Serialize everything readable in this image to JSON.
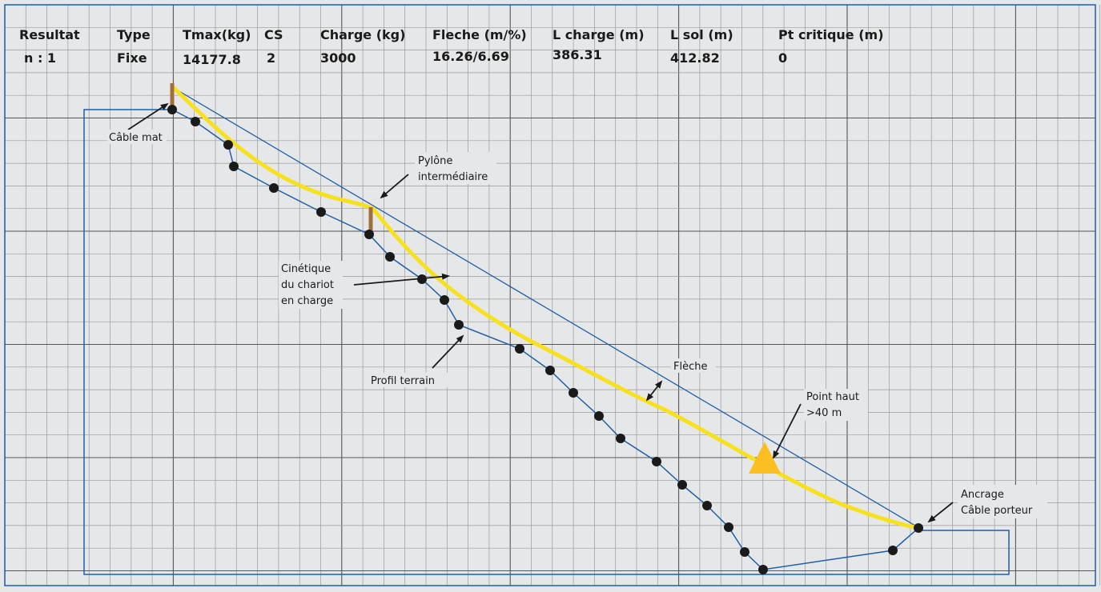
{
  "header": {
    "columns": [
      {
        "label": "Resultat",
        "value": "n : 1"
      },
      {
        "label": "Type",
        "value": "Fixe"
      },
      {
        "label": "Tmax(kg)",
        "value": "14177.8"
      },
      {
        "label": "CS",
        "value": "2"
      },
      {
        "label": "Charge (kg)",
        "value": "3000"
      },
      {
        "label": "Fleche (m/%)",
        "value": "16.26/6.69"
      },
      {
        "label": "L charge (m)",
        "value": "386.31"
      },
      {
        "label": "L sol (m)",
        "value": "412.82"
      },
      {
        "label": "Pt critique (m)",
        "value": "0"
      }
    ]
  },
  "annotations": {
    "cable_mat": "Câble mat",
    "pylone_line1": "Pylône",
    "pylone_line2": "intermédiaire",
    "cinetique_line1": "Cinétique",
    "cinetique_line2": "du chariot",
    "cinetique_line3": "en charge",
    "profil_terrain": "Profil terrain",
    "fleche": "Flèche",
    "point_haut_line1": "Point haut",
    "point_haut_line2": ">40 m",
    "ancrage_line1": "Ancrage",
    "ancrage_line2": "Câble porteur"
  },
  "colors": {
    "background": "#e6e7e8",
    "grid_minor": "#9a9a9a",
    "grid_major": "#555555",
    "cable": "#1f5fa8",
    "load_curve": "#f7e11e",
    "marker": "#fbbf24",
    "pylon": "#a0703c",
    "node": "#1a1a1a"
  }
}
